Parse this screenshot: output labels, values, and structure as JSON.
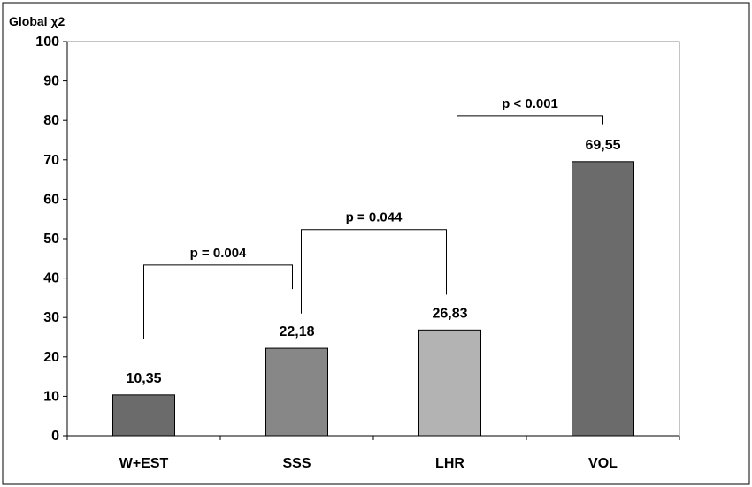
{
  "chart_data": {
    "type": "bar",
    "ylabel": "Global χ2",
    "ylim": [
      0,
      100
    ],
    "yticks": [
      0,
      10,
      20,
      30,
      40,
      50,
      60,
      70,
      80,
      90,
      100
    ],
    "categories": [
      "W+EST",
      "SSS",
      "LHR",
      "VOL"
    ],
    "values": [
      10.35,
      22.18,
      26.83,
      69.55
    ],
    "value_labels": [
      "10,35",
      "22,18",
      "26,83",
      "69,55"
    ],
    "colors": [
      "#6b6b6b",
      "#878787",
      "#b3b3b3",
      "#6b6b6b"
    ],
    "grid": false,
    "legend": "none",
    "comparisons": [
      {
        "from": 0,
        "to": 1,
        "label": "p = 0.004"
      },
      {
        "from": 1,
        "to": 2,
        "label": "p = 0.044"
      },
      {
        "from": 2,
        "to": 3,
        "label": "p < 0.001"
      }
    ]
  }
}
